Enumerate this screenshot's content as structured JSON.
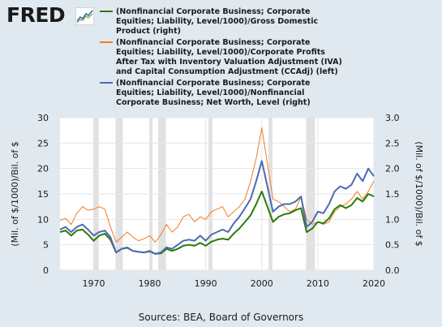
{
  "logo": {
    "text": "FRED"
  },
  "source": "Sources: BEA, Board of Governors",
  "chart_data": {
    "type": "line",
    "title": "",
    "x_range": [
      1964,
      2020
    ],
    "x_ticks": [
      "1970",
      "1980",
      "1990",
      "2000",
      "2010",
      "2020"
    ],
    "left_axis": {
      "label": "(Mil. of $/1000)/Bil. of $",
      "range": [
        0,
        30
      ],
      "ticks": [
        "0",
        "5",
        "10",
        "15",
        "20",
        "25",
        "30"
      ]
    },
    "right_axis": {
      "label": "(Mil. of $/1000)/Bil. of $",
      "range": [
        0,
        3
      ],
      "ticks": [
        "0.0",
        "0.5",
        "1.0",
        "1.5",
        "2.0",
        "2.5",
        "3.0"
      ]
    },
    "grid": true,
    "legend_placement": "top",
    "recessions": [
      [
        1969.9,
        1970.9
      ],
      [
        1973.9,
        1975.2
      ],
      [
        1980.0,
        1980.5
      ],
      [
        1981.5,
        1982.9
      ],
      [
        1990.5,
        1991.2
      ],
      [
        2001.2,
        2001.9
      ],
      [
        2007.9,
        2009.5
      ]
    ],
    "series": [
      {
        "name": "(Nonfinancial Corporate Business; Corporate Equities; Liability, Level/1000)/Gross Domestic Product (right)",
        "axis": "right",
        "color": "#2b7a0b",
        "x": [
          1964,
          1965,
          1966,
          1967,
          1968,
          1969,
          1970,
          1971,
          1972,
          1973,
          1974,
          1975,
          1976,
          1977,
          1978,
          1979,
          1980,
          1981,
          1982,
          1983,
          1984,
          1985,
          1986,
          1987,
          1988,
          1989,
          1990,
          1991,
          1992,
          1993,
          1994,
          1995,
          1996,
          1997,
          1998,
          1999,
          2000,
          2001,
          2002,
          2003,
          2004,
          2005,
          2006,
          2007,
          2008,
          2009,
          2010,
          2011,
          2012,
          2013,
          2014,
          2015,
          2016,
          2017,
          2018,
          2019,
          2020
        ],
        "y": [
          0.75,
          0.78,
          0.68,
          0.78,
          0.8,
          0.7,
          0.58,
          0.68,
          0.72,
          0.6,
          0.35,
          0.42,
          0.44,
          0.38,
          0.36,
          0.35,
          0.37,
          0.32,
          0.33,
          0.42,
          0.38,
          0.42,
          0.48,
          0.5,
          0.48,
          0.54,
          0.48,
          0.56,
          0.6,
          0.62,
          0.6,
          0.72,
          0.82,
          0.95,
          1.08,
          1.3,
          1.55,
          1.25,
          0.95,
          1.05,
          1.1,
          1.12,
          1.18,
          1.22,
          0.75,
          0.82,
          0.95,
          0.92,
          1.02,
          1.2,
          1.28,
          1.22,
          1.28,
          1.42,
          1.35,
          1.5,
          1.45
        ]
      },
      {
        "name": "(Nonfinancial Corporate Business; Corporate Equities; Liability, Level/1000)/Corporate Profits After Tax with Inventory Valuation Adjustment (IVA) and Capital Consumption Adjustment (CCAdj) (left)",
        "axis": "left",
        "color": "#f27b27",
        "x": [
          1964,
          1965,
          1966,
          1967,
          1968,
          1969,
          1970,
          1971,
          1972,
          1973,
          1974,
          1975,
          1976,
          1977,
          1978,
          1979,
          1980,
          1981,
          1982,
          1983,
          1984,
          1985,
          1986,
          1987,
          1988,
          1989,
          1990,
          1991,
          1992,
          1993,
          1994,
          1995,
          1996,
          1997,
          1998,
          1999,
          2000,
          2001,
          2002,
          2003,
          2004,
          2005,
          2006,
          2007,
          2008,
          2009,
          2010,
          2011,
          2012,
          2013,
          2014,
          2015,
          2016,
          2017,
          2018,
          2019,
          2020
        ],
        "y": [
          9.8,
          10.2,
          9.0,
          11.2,
          12.5,
          11.8,
          12.0,
          12.5,
          12.0,
          8.5,
          5.5,
          6.5,
          7.5,
          6.5,
          5.8,
          6.2,
          6.8,
          5.5,
          7.0,
          9.0,
          7.5,
          8.5,
          10.5,
          11.0,
          9.5,
          10.5,
          10.0,
          11.5,
          12.0,
          12.5,
          10.5,
          11.5,
          12.5,
          14.0,
          17.5,
          22.0,
          28.0,
          21.0,
          14.0,
          13.5,
          12.5,
          11.5,
          12.0,
          14.5,
          10.0,
          9.0,
          9.5,
          9.0,
          9.5,
          11.5,
          12.5,
          13.0,
          14.0,
          15.5,
          14.0,
          15.5,
          17.5
        ]
      },
      {
        "name": "(Nonfinancial Corporate Business; Corporate Equities; Liability, Level/1000)/Nonfinancial Corporate Business; Net Worth, Level (right)",
        "axis": "right",
        "color": "#4b6cb3",
        "x": [
          1964,
          1965,
          1966,
          1967,
          1968,
          1969,
          1970,
          1971,
          1972,
          1973,
          1974,
          1975,
          1976,
          1977,
          1978,
          1979,
          1980,
          1981,
          1982,
          1983,
          1984,
          1985,
          1986,
          1987,
          1988,
          1989,
          1990,
          1991,
          1992,
          1993,
          1994,
          1995,
          1996,
          1997,
          1998,
          1999,
          2000,
          2001,
          2002,
          2003,
          2004,
          2005,
          2006,
          2007,
          2008,
          2009,
          2010,
          2011,
          2012,
          2013,
          2014,
          2015,
          2016,
          2017,
          2018,
          2019,
          2020
        ],
        "y": [
          0.8,
          0.85,
          0.75,
          0.85,
          0.9,
          0.8,
          0.68,
          0.75,
          0.78,
          0.65,
          0.35,
          0.42,
          0.45,
          0.38,
          0.36,
          0.35,
          0.38,
          0.32,
          0.35,
          0.45,
          0.42,
          0.5,
          0.58,
          0.6,
          0.58,
          0.68,
          0.58,
          0.7,
          0.75,
          0.8,
          0.75,
          0.92,
          1.05,
          1.22,
          1.4,
          1.75,
          2.15,
          1.65,
          1.15,
          1.25,
          1.3,
          1.3,
          1.35,
          1.45,
          0.85,
          0.95,
          1.15,
          1.12,
          1.3,
          1.55,
          1.65,
          1.6,
          1.68,
          1.9,
          1.75,
          2.0,
          1.85
        ]
      }
    ]
  }
}
